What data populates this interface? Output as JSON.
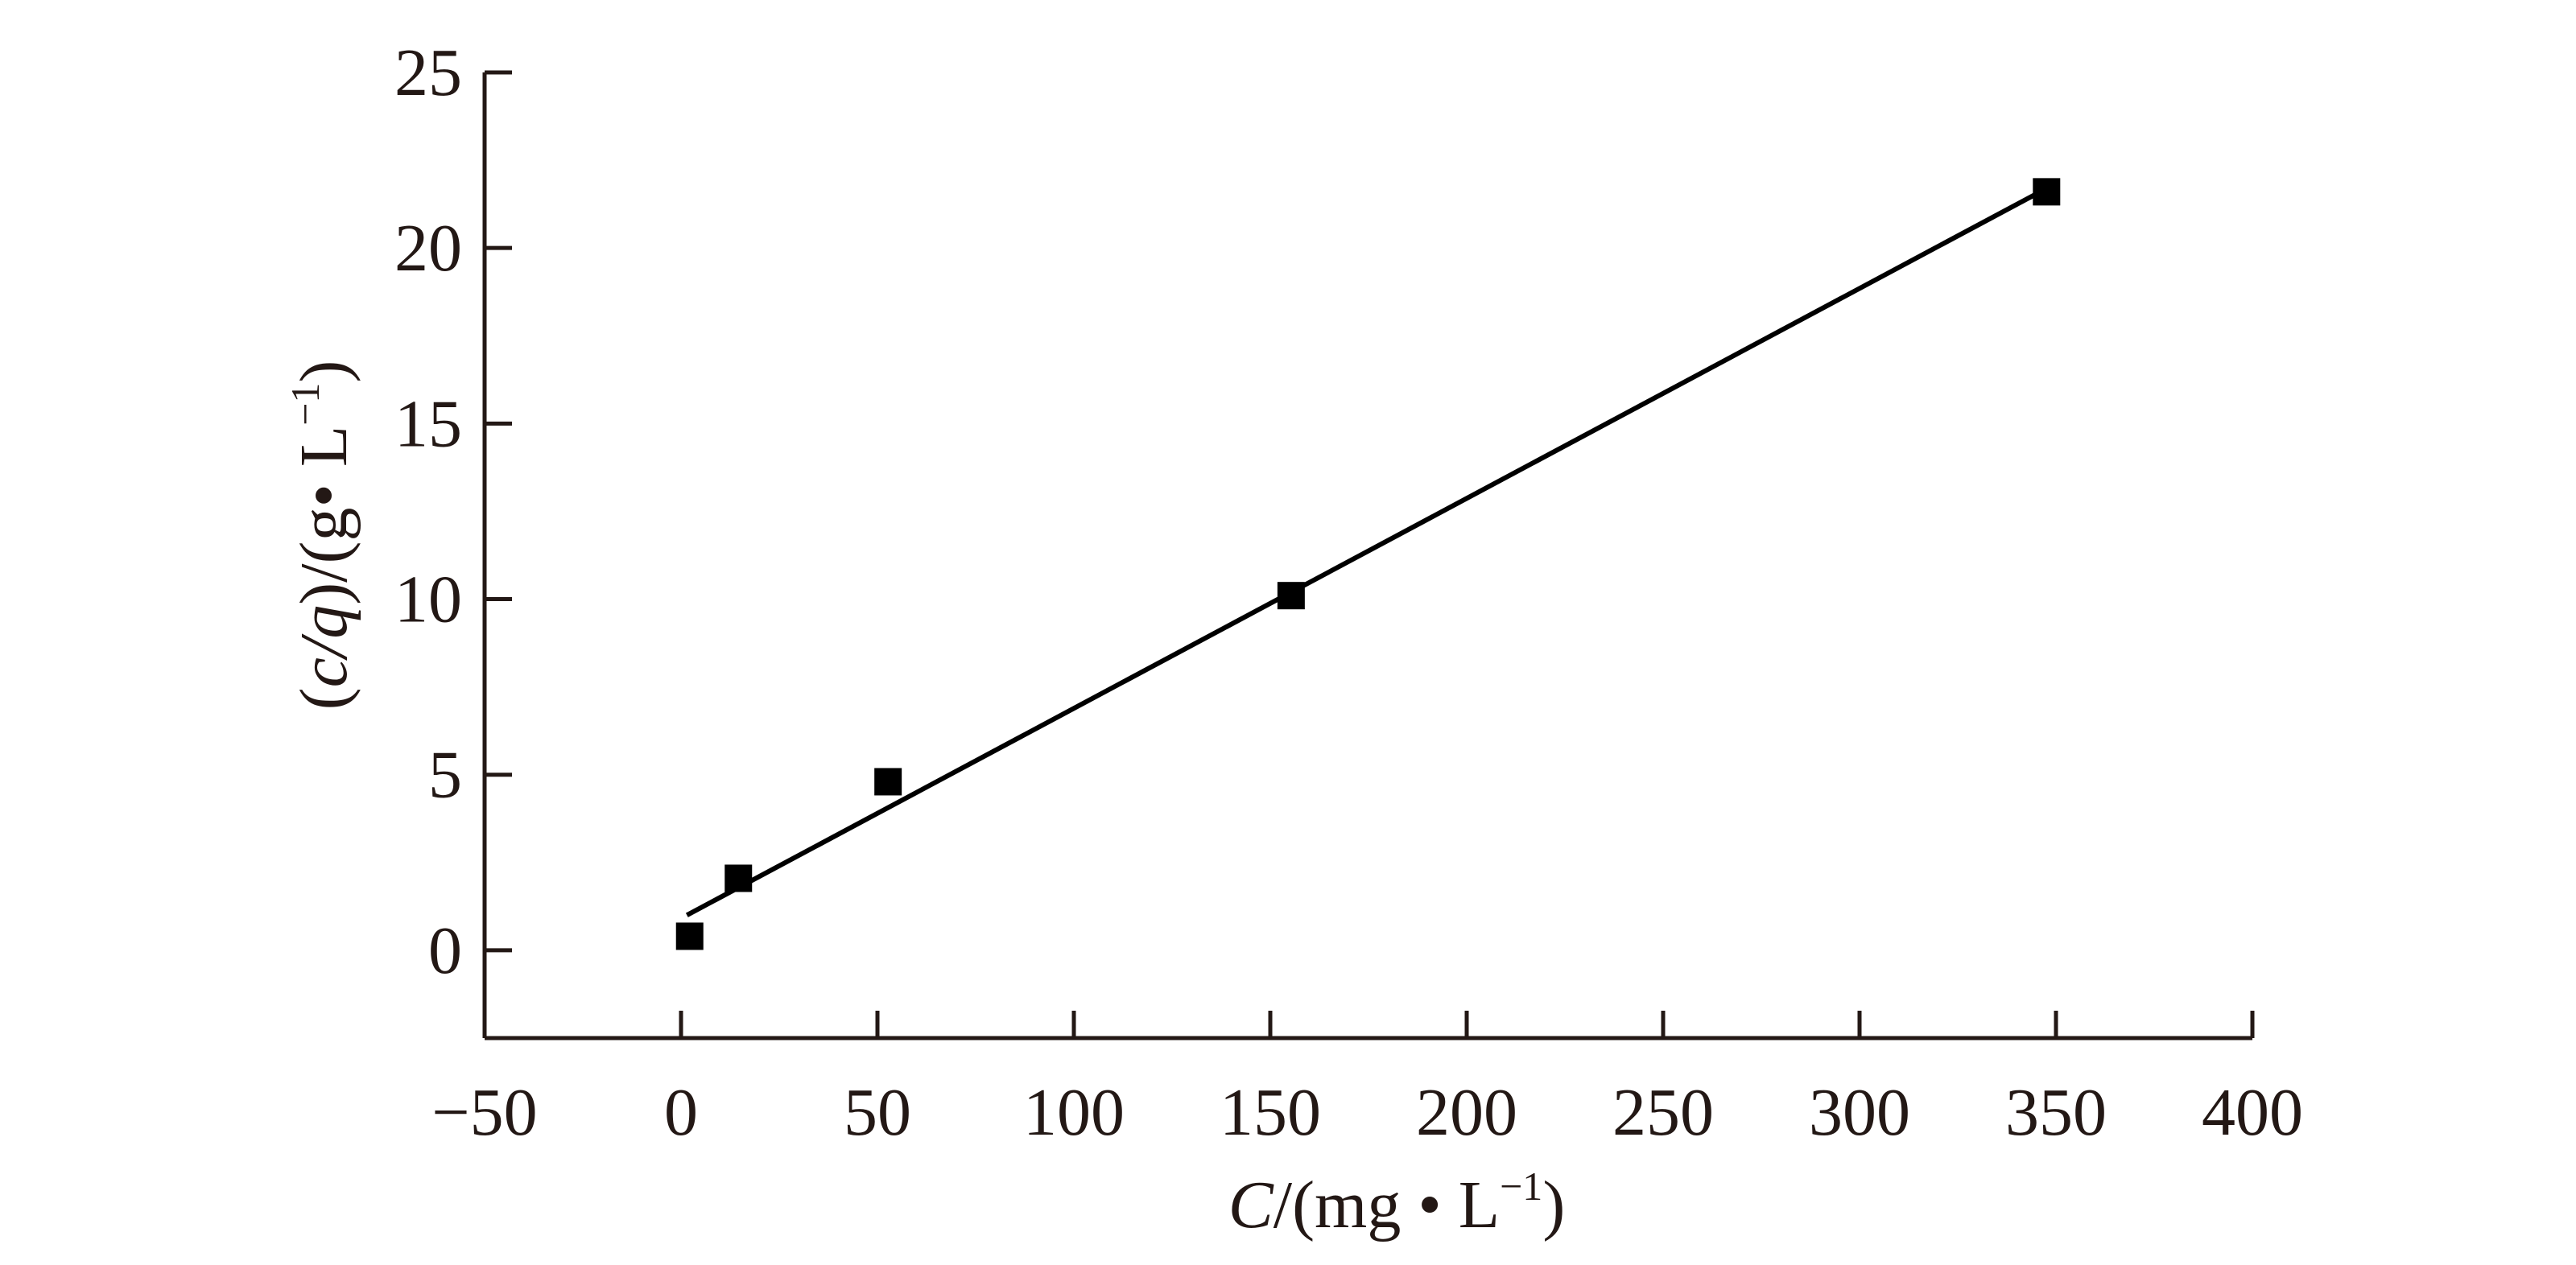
{
  "chart_data": {
    "type": "scatter",
    "title": "",
    "xlabel": {
      "var": "C",
      "unit_open": "/(mg • L",
      "unit_sup": "−1",
      "unit_close": ")"
    },
    "ylabel": {
      "open": "(",
      "var": "c/q",
      "unit_open": ")/(g• L",
      "unit_sup": "−1",
      "unit_close": ")"
    },
    "xlim": [
      -50,
      400
    ],
    "ylim": [
      -2.5,
      25
    ],
    "xticks": [
      -50,
      0,
      50,
      100,
      150,
      200,
      250,
      300,
      350,
      400
    ],
    "xtick_labels": [
      "−50",
      "0",
      "50",
      "100",
      "150",
      "200",
      "250",
      "300",
      "350",
      "400"
    ],
    "yticks": [
      0,
      5,
      10,
      15,
      20,
      25
    ],
    "ytick_labels": [
      "0",
      "5",
      "10",
      "15",
      "20",
      "25"
    ],
    "grid": false,
    "legend": "none",
    "series": [
      {
        "kind": "scatter",
        "marker": "square",
        "color": "#000000",
        "x": [
          2.2,
          14.6,
          52.7,
          155.3,
          347.6
        ],
        "y": [
          0.4,
          2.05,
          4.8,
          10.1,
          21.6
        ]
      },
      {
        "kind": "line",
        "color": "#000000",
        "x": [
          1.5,
          346.0
        ],
        "y": [
          1.0,
          21.6
        ]
      }
    ]
  }
}
